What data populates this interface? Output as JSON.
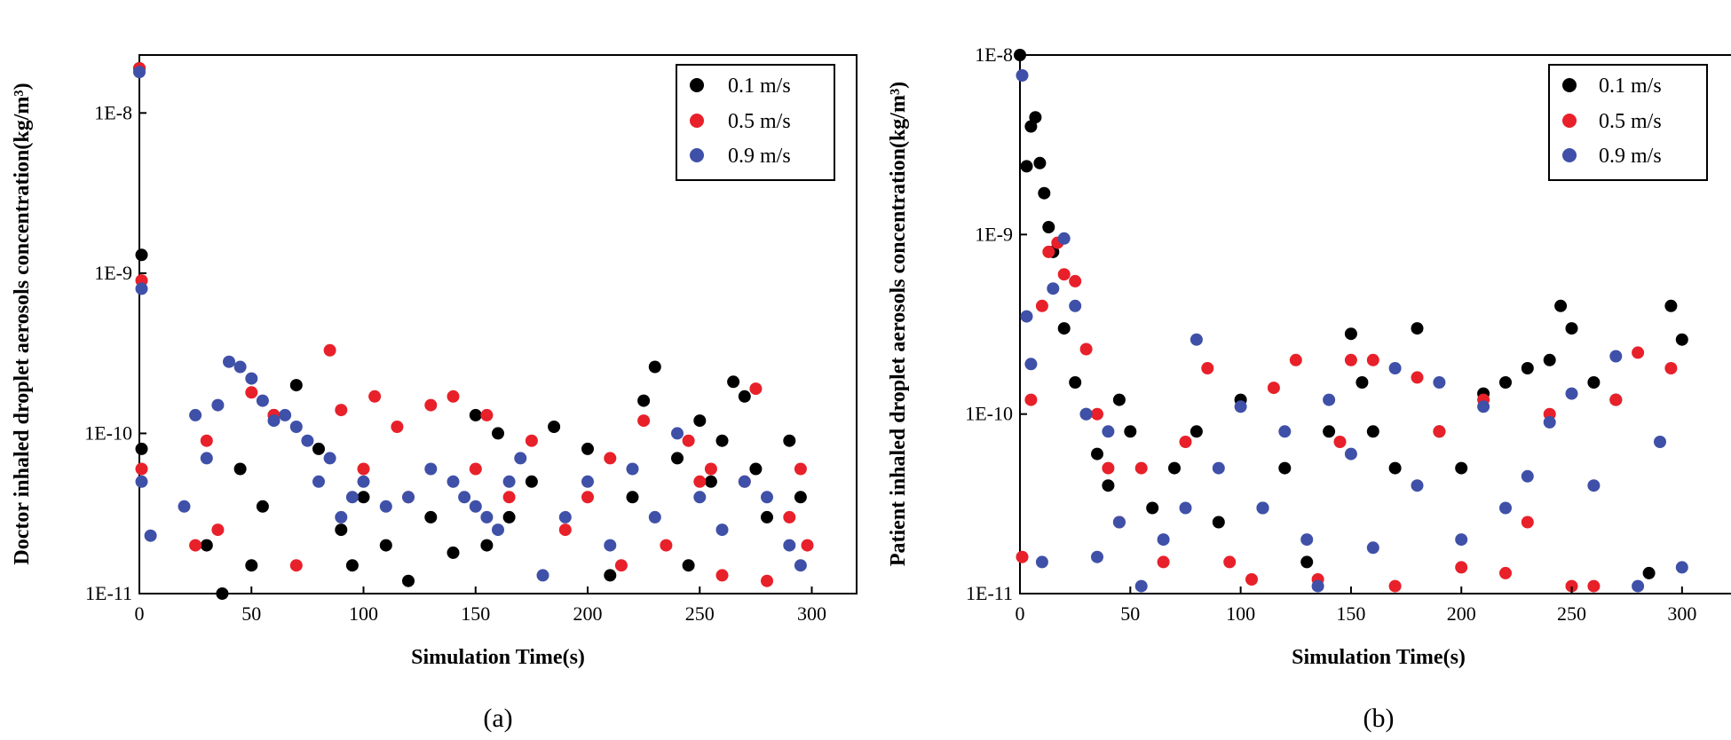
{
  "chart_data": [
    {
      "type": "scatter",
      "panel_label": "(a)",
      "xlabel": "Simulation Time(s)",
      "ylabel": "Doctor inhaled droplet aerosols concentration(kg/m³)",
      "yscale": "log",
      "xlim": [
        0,
        320
      ],
      "ylim": [
        1e-11,
        2.3e-08
      ],
      "xticks": [
        0,
        50,
        100,
        150,
        200,
        250,
        300
      ],
      "xtick_labels": [
        "0",
        "50",
        "100",
        "150",
        "200",
        "250",
        "300"
      ],
      "yticks": [
        1e-11,
        1e-10,
        1e-09,
        1e-08
      ],
      "ytick_labels": [
        "1E-11",
        "1E-10",
        "1E-9",
        "1E-8"
      ],
      "legend_position": "top-right",
      "series": [
        {
          "name": "0.1 m/s",
          "color": "#000000",
          "x": [
            0,
            1,
            1,
            30,
            37,
            45,
            50,
            55,
            60,
            70,
            80,
            90,
            95,
            100,
            110,
            120,
            130,
            140,
            150,
            155,
            160,
            165,
            175,
            185,
            200,
            210,
            220,
            225,
            230,
            240,
            245,
            250,
            255,
            260,
            265,
            270,
            275,
            280,
            290,
            295
          ],
          "y": [
            1.9e-08,
            1.3e-09,
            8e-11,
            2e-11,
            1e-11,
            6e-11,
            1.5e-11,
            3.5e-11,
            1.3e-10,
            2e-10,
            8e-11,
            2.5e-11,
            1.5e-11,
            4e-11,
            2e-11,
            1.2e-11,
            3e-11,
            1.8e-11,
            1.3e-10,
            2e-11,
            1e-10,
            3e-11,
            5e-11,
            1.1e-10,
            8e-11,
            1.3e-11,
            4e-11,
            1.6e-10,
            2.6e-10,
            7e-11,
            1.5e-11,
            1.2e-10,
            5e-11,
            9e-11,
            2.1e-10,
            1.7e-10,
            6e-11,
            3e-11,
            9e-11,
            4e-11
          ]
        },
        {
          "name": "0.5 m/s",
          "color": "#e8202a",
          "x": [
            0,
            1,
            1,
            25,
            30,
            35,
            50,
            60,
            70,
            85,
            90,
            100,
            105,
            115,
            120,
            130,
            140,
            150,
            155,
            165,
            175,
            190,
            200,
            210,
            215,
            225,
            235,
            245,
            250,
            255,
            260,
            270,
            275,
            280,
            290,
            295,
            298
          ],
          "y": [
            1.9e-08,
            9e-10,
            6e-11,
            2e-11,
            9e-11,
            2.5e-11,
            1.8e-10,
            1.3e-10,
            1.5e-11,
            3.3e-10,
            1.4e-10,
            6e-11,
            1.7e-10,
            1.1e-10,
            4e-11,
            1.5e-10,
            1.7e-10,
            6e-11,
            1.3e-10,
            4e-11,
            9e-11,
            2.5e-11,
            4e-11,
            7e-11,
            1.5e-11,
            1.2e-10,
            2e-11,
            9e-11,
            5e-11,
            6e-11,
            1.3e-11,
            5e-11,
            1.9e-10,
            1.2e-11,
            3e-11,
            6e-11,
            2e-11
          ]
        },
        {
          "name": "0.9 m/s",
          "color": "#3f50a8",
          "x": [
            0,
            1,
            1,
            5,
            20,
            25,
            30,
            35,
            40,
            45,
            50,
            55,
            60,
            65,
            70,
            75,
            80,
            85,
            90,
            95,
            100,
            110,
            120,
            130,
            140,
            145,
            150,
            155,
            160,
            165,
            170,
            180,
            190,
            200,
            210,
            220,
            230,
            240,
            250,
            260,
            270,
            280,
            290,
            295
          ],
          "y": [
            1.8e-08,
            8e-10,
            5e-11,
            2.3e-11,
            3.5e-11,
            1.3e-10,
            7e-11,
            1.5e-10,
            2.8e-10,
            2.6e-10,
            2.2e-10,
            1.6e-10,
            1.2e-10,
            1.3e-10,
            1.1e-10,
            9e-11,
            5e-11,
            7e-11,
            3e-11,
            4e-11,
            5e-11,
            3.5e-11,
            4e-11,
            6e-11,
            5e-11,
            4e-11,
            3.5e-11,
            3e-11,
            2.5e-11,
            5e-11,
            7e-11,
            1.3e-11,
            3e-11,
            5e-11,
            2e-11,
            6e-11,
            3e-11,
            1e-10,
            4e-11,
            2.5e-11,
            5e-11,
            4e-11,
            2e-11,
            1.5e-11
          ]
        }
      ]
    },
    {
      "type": "scatter",
      "panel_label": "(b)",
      "xlabel": "Simulation Time(s)",
      "ylabel": "Patient inhaled droplet aerosols concentration(kg/m³)",
      "yscale": "log",
      "xlim": [
        0,
        325
      ],
      "ylim": [
        1e-11,
        1e-08
      ],
      "xticks": [
        0,
        50,
        100,
        150,
        200,
        250,
        300
      ],
      "xtick_labels": [
        "0",
        "50",
        "100",
        "150",
        "200",
        "250",
        "300"
      ],
      "yticks": [
        1e-11,
        1e-10,
        1e-09,
        1e-08
      ],
      "ytick_labels": [
        "1E-11",
        "1E-10",
        "1E-9",
        "1E-8"
      ],
      "legend_position": "top-right",
      "series": [
        {
          "name": "0.1 m/s",
          "color": "#000000",
          "x": [
            0,
            3,
            5,
            7,
            9,
            11,
            13,
            15,
            20,
            25,
            30,
            35,
            40,
            45,
            50,
            60,
            70,
            80,
            90,
            100,
            110,
            120,
            130,
            140,
            150,
            155,
            160,
            170,
            180,
            190,
            200,
            210,
            220,
            230,
            240,
            245,
            250,
            260,
            270,
            285,
            295,
            300
          ],
          "y": [
            1e-08,
            2.4e-09,
            4e-09,
            4.5e-09,
            2.5e-09,
            1.7e-09,
            1.1e-09,
            8e-10,
            3e-10,
            1.5e-10,
            1e-10,
            6e-11,
            4e-11,
            1.2e-10,
            8e-11,
            3e-11,
            5e-11,
            8e-11,
            2.5e-11,
            1.2e-10,
            3e-11,
            5e-11,
            1.5e-11,
            8e-11,
            2.8e-10,
            1.5e-10,
            8e-11,
            5e-11,
            3e-10,
            8e-11,
            5e-11,
            1.3e-10,
            1.5e-10,
            1.8e-10,
            2e-10,
            4e-10,
            3e-10,
            1.5e-10,
            1.2e-10,
            1.3e-11,
            4e-10,
            2.6e-10
          ]
        },
        {
          "name": "0.5 m/s",
          "color": "#e8202a",
          "x": [
            1,
            5,
            10,
            13,
            17,
            20,
            25,
            30,
            35,
            40,
            45,
            55,
            65,
            75,
            85,
            95,
            105,
            115,
            125,
            135,
            145,
            150,
            160,
            170,
            180,
            190,
            200,
            210,
            220,
            230,
            240,
            250,
            260,
            270,
            280,
            295
          ],
          "y": [
            1.6e-11,
            1.2e-10,
            4e-10,
            8e-10,
            9e-10,
            6e-10,
            5.5e-10,
            2.3e-10,
            1e-10,
            5e-11,
            2.5e-11,
            5e-11,
            1.5e-11,
            7e-11,
            1.8e-10,
            1.5e-11,
            1.2e-11,
            1.4e-10,
            2e-10,
            1.2e-11,
            7e-11,
            2e-10,
            2e-10,
            1.1e-11,
            1.6e-10,
            8e-11,
            1.4e-11,
            1.2e-10,
            1.3e-11,
            2.5e-11,
            1e-10,
            1.1e-11,
            1.1e-11,
            1.2e-10,
            2.2e-10,
            1.8e-10
          ]
        },
        {
          "name": "0.9 m/s",
          "color": "#3f50a8",
          "x": [
            1,
            3,
            5,
            10,
            15,
            20,
            25,
            30,
            35,
            40,
            45,
            55,
            65,
            75,
            80,
            90,
            100,
            110,
            120,
            130,
            135,
            140,
            150,
            160,
            170,
            180,
            190,
            200,
            210,
            220,
            230,
            240,
            250,
            260,
            270,
            280,
            290,
            300
          ],
          "y": [
            7.7e-09,
            3.5e-10,
            1.9e-10,
            1.5e-11,
            5e-10,
            9.5e-10,
            4e-10,
            1e-10,
            1.6e-11,
            8e-11,
            2.5e-11,
            1.1e-11,
            2e-11,
            3e-11,
            2.6e-10,
            5e-11,
            1.1e-10,
            3e-11,
            8e-11,
            2e-11,
            1.1e-11,
            1.2e-10,
            6e-11,
            1.8e-11,
            1.8e-10,
            4e-11,
            1.5e-10,
            2e-11,
            1.1e-10,
            3e-11,
            4.5e-11,
            9e-11,
            1.3e-10,
            4e-11,
            2.1e-10,
            1.1e-11,
            7e-11,
            1.4e-11
          ]
        }
      ]
    }
  ]
}
